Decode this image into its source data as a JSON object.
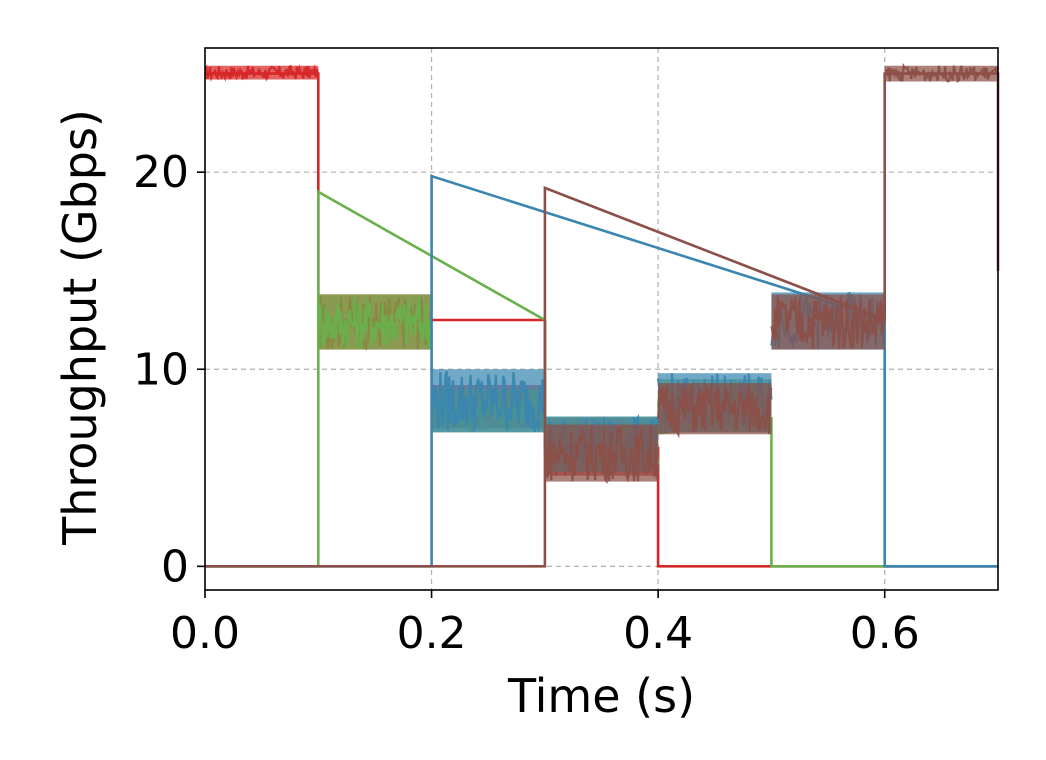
{
  "chart_data": {
    "type": "line",
    "title": "",
    "xlabel": "Time (s)",
    "ylabel": "Throughput (Gbps)",
    "xlim": [
      0.0,
      0.7
    ],
    "ylim": [
      -1.2,
      26.3
    ],
    "xticks": [
      0.0,
      0.2,
      0.4,
      0.6
    ],
    "xtick_labels": [
      "0.0",
      "0.2",
      "0.4",
      "0.6"
    ],
    "yticks": [
      0,
      10,
      20
    ],
    "ytick_labels": [
      "0",
      "10",
      "20"
    ],
    "grid": true,
    "legend": "none",
    "series": [
      {
        "color": "#d62728",
        "x": [
          0.0,
          0.1,
          0.1,
          0.3,
          0.3,
          0.4,
          0.4,
          0.7
        ],
        "y": [
          25.0,
          25.0,
          12.5,
          12.5,
          6.0,
          6.0,
          0.0,
          0.0
        ],
        "band": [
          [
            0.0,
            0.1,
            24.7,
            25.4
          ],
          [
            0.1,
            0.2,
            11.0,
            13.8
          ],
          [
            0.2,
            0.3,
            7.0,
            9.2
          ],
          [
            0.3,
            0.4,
            4.6,
            7.5
          ]
        ]
      },
      {
        "color": "#6ab04c",
        "x": [
          0.0,
          0.1,
          0.1,
          0.3,
          0.3,
          0.5,
          0.5,
          0.7
        ],
        "y": [
          0.0,
          0.0,
          19.0,
          12.5,
          6.0,
          7.5,
          0.0,
          0.0
        ],
        "band": [
          [
            0.1,
            0.2,
            11.0,
            13.8
          ],
          [
            0.2,
            0.3,
            6.8,
            9.0
          ],
          [
            0.3,
            0.4,
            4.8,
            7.6
          ],
          [
            0.4,
            0.5,
            6.8,
            9.5
          ]
        ]
      },
      {
        "color": "#3a86b0",
        "x": [
          0.0,
          0.2,
          0.2,
          0.6,
          0.6,
          0.7
        ],
        "y": [
          0.0,
          0.0,
          19.8,
          12.5,
          0.0,
          0.0
        ],
        "band": [
          [
            0.2,
            0.3,
            6.8,
            10.0
          ],
          [
            0.3,
            0.4,
            4.8,
            7.6
          ],
          [
            0.4,
            0.5,
            6.8,
            9.8
          ],
          [
            0.5,
            0.6,
            11.0,
            13.9
          ]
        ]
      },
      {
        "color": "#8c5048",
        "x": [
          0.0,
          0.3,
          0.3,
          0.6,
          0.6,
          0.7,
          0.7
        ],
        "y": [
          0.0,
          0.0,
          19.2,
          12.5,
          25.0,
          25.0,
          15.0
        ],
        "band": [
          [
            0.3,
            0.4,
            4.3,
            7.2
          ],
          [
            0.4,
            0.5,
            6.7,
            9.3
          ],
          [
            0.5,
            0.6,
            11.0,
            13.8
          ],
          [
            0.6,
            0.7,
            24.6,
            25.4
          ]
        ]
      }
    ]
  }
}
